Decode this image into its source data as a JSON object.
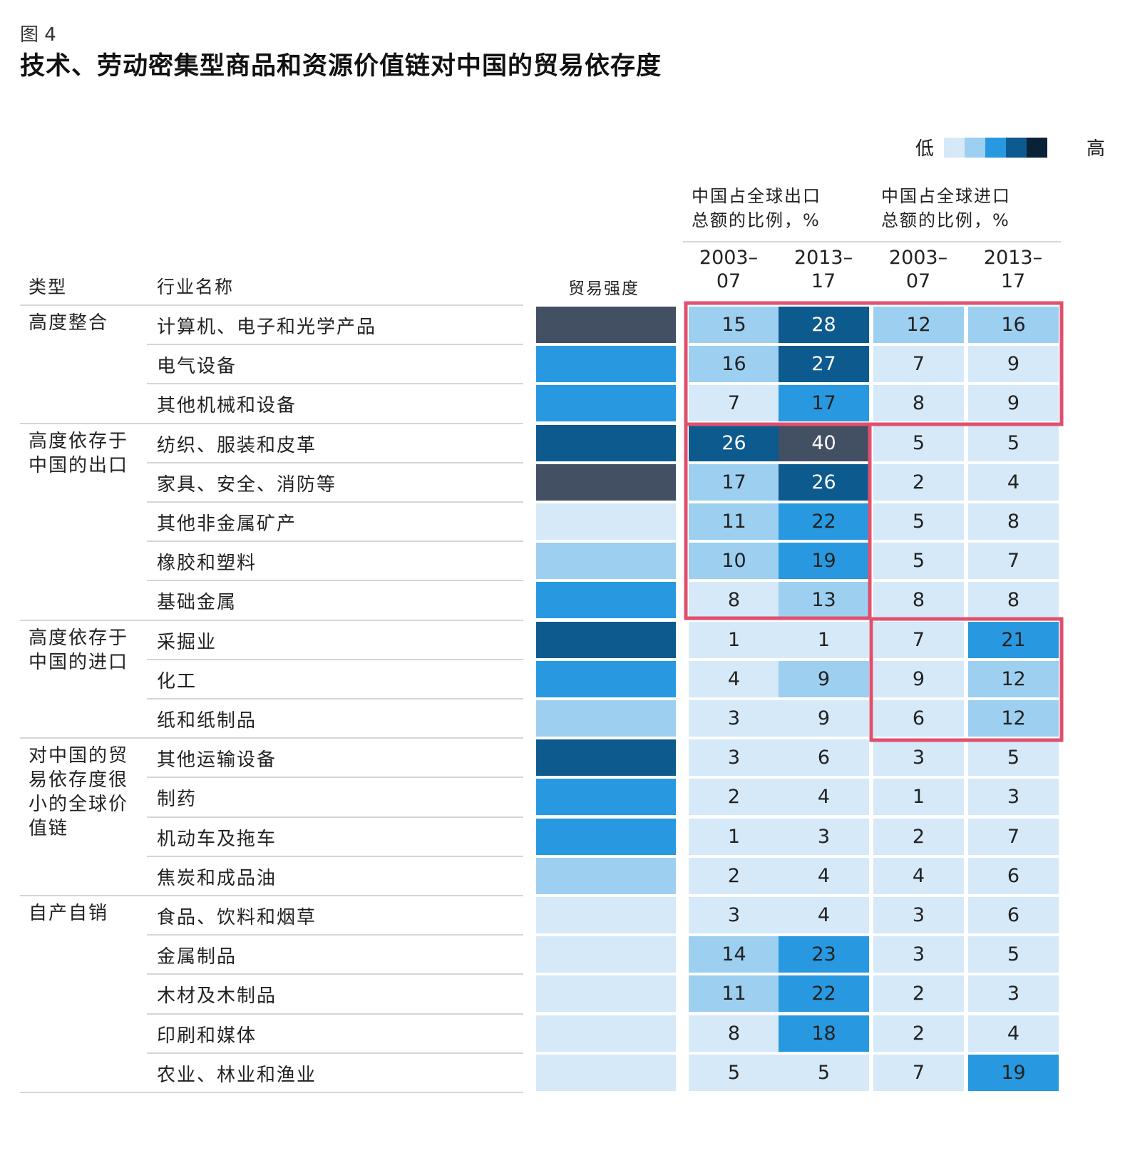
{
  "figure_label": "图 4",
  "title": "技术、劳动密集型商品和资源价值链对中国的贸易依存度",
  "legend": {
    "low": "低",
    "high": "高",
    "colors": [
      "#d6e9f8",
      "#9dcff0",
      "#2899e0",
      "#0d5a8e",
      "#0a2238"
    ]
  },
  "headers": {
    "type": "类型",
    "industry": "行业名称",
    "intensity": "贸易强度",
    "export_group_line1": "中国占全球出口",
    "export_group_line2": "总额的比例，%",
    "import_group_line1": "中国占全球进口",
    "import_group_line2": "总额的比例，%",
    "years": [
      {
        "line1": "2003–",
        "line2": "07"
      },
      {
        "line1": "2013–",
        "line2": "17"
      },
      {
        "line1": "2003–",
        "line2": "07"
      },
      {
        "line1": "2013–",
        "line2": "17"
      }
    ]
  },
  "chart_data": {
    "type": "table",
    "columns": [
      "2003–07 出口",
      "2013–17 出口",
      "2003–07 进口",
      "2013–17 进口"
    ],
    "groups": [
      {
        "label": "高度整合",
        "label_lines": [
          "高度整合"
        ],
        "rows": [
          {
            "industry": "计算机、电子和光学产品",
            "intensity": 5,
            "values": [
              15,
              28,
              12,
              16
            ],
            "shade": [
              2,
              4,
              2,
              2
            ]
          },
          {
            "industry": "电气设备",
            "intensity": 3,
            "values": [
              16,
              27,
              7,
              9
            ],
            "shade": [
              2,
              4,
              1,
              1
            ]
          },
          {
            "industry": "其他机械和设备",
            "intensity": 3,
            "values": [
              7,
              17,
              8,
              9
            ],
            "shade": [
              1,
              3,
              1,
              1
            ]
          }
        ]
      },
      {
        "label": "高度依存于中国的出口",
        "label_lines": [
          "高度依存于",
          "中国的出口"
        ],
        "rows": [
          {
            "industry": "纺织、服装和皮革",
            "intensity": 4,
            "values": [
              26,
              40,
              5,
              5
            ],
            "shade": [
              4,
              5,
              1,
              1
            ]
          },
          {
            "industry": "家具、安全、消防等",
            "intensity": 5,
            "values": [
              17,
              26,
              2,
              4
            ],
            "shade": [
              2,
              4,
              1,
              1
            ]
          },
          {
            "industry": "其他非金属矿产",
            "intensity": 1,
            "values": [
              11,
              22,
              5,
              8
            ],
            "shade": [
              2,
              3,
              1,
              1
            ]
          },
          {
            "industry": "橡胶和塑料",
            "intensity": 2,
            "values": [
              10,
              19,
              5,
              7
            ],
            "shade": [
              2,
              3,
              1,
              1
            ]
          },
          {
            "industry": "基础金属",
            "intensity": 3,
            "values": [
              8,
              13,
              8,
              8
            ],
            "shade": [
              1,
              2,
              1,
              1
            ]
          }
        ]
      },
      {
        "label": "高度依存于中国的进口",
        "label_lines": [
          "高度依存于",
          "中国的进口"
        ],
        "rows": [
          {
            "industry": "采掘业",
            "intensity": 4,
            "values": [
              1,
              1,
              7,
              21
            ],
            "shade": [
              1,
              1,
              1,
              3
            ]
          },
          {
            "industry": "化工",
            "intensity": 3,
            "values": [
              4,
              9,
              9,
              12
            ],
            "shade": [
              1,
              2,
              1,
              2
            ]
          },
          {
            "industry": "纸和纸制品",
            "intensity": 2,
            "values": [
              3,
              9,
              6,
              12
            ],
            "shade": [
              1,
              1,
              1,
              2
            ]
          }
        ]
      },
      {
        "label": "对中国的贸易依存度很小的全球价值链",
        "label_lines": [
          "对中国的贸",
          "易依存度很",
          "小的全球价",
          "值链"
        ],
        "rows": [
          {
            "industry": "其他运输设备",
            "intensity": 4,
            "values": [
              3,
              6,
              3,
              5
            ],
            "shade": [
              1,
              1,
              1,
              1
            ]
          },
          {
            "industry": "制药",
            "intensity": 3,
            "values": [
              2,
              4,
              1,
              3
            ],
            "shade": [
              1,
              1,
              1,
              1
            ]
          },
          {
            "industry": "机动车及拖车",
            "intensity": 3,
            "values": [
              1,
              3,
              2,
              7
            ],
            "shade": [
              1,
              1,
              1,
              1
            ]
          },
          {
            "industry": "焦炭和成品油",
            "intensity": 2,
            "values": [
              2,
              4,
              4,
              6
            ],
            "shade": [
              1,
              1,
              1,
              1
            ]
          }
        ]
      },
      {
        "label": "自产自销",
        "label_lines": [
          "自产自销"
        ],
        "rows": [
          {
            "industry": "食品、饮料和烟草",
            "intensity": 1,
            "values": [
              3,
              4,
              3,
              6
            ],
            "shade": [
              1,
              1,
              1,
              1
            ]
          },
          {
            "industry": "金属制品",
            "intensity": 1,
            "values": [
              14,
              23,
              3,
              5
            ],
            "shade": [
              2,
              3,
              1,
              1
            ]
          },
          {
            "industry": "木材及木制品",
            "intensity": 1,
            "values": [
              11,
              22,
              2,
              3
            ],
            "shade": [
              2,
              3,
              1,
              1
            ]
          },
          {
            "industry": "印刷和媒体",
            "intensity": 1,
            "values": [
              8,
              18,
              2,
              4
            ],
            "shade": [
              1,
              3,
              1,
              1
            ]
          },
          {
            "industry": "农业、林业和渔业",
            "intensity": 1,
            "values": [
              5,
              5,
              7,
              19
            ],
            "shade": [
              1,
              1,
              1,
              3
            ]
          }
        ]
      }
    ],
    "highlight_color": "#e0506e",
    "highlights": [
      {
        "rows": "计算机、电子和光学产品 – 其他机械和设备",
        "columns": "all four"
      },
      {
        "rows": "纺织、服装和皮革 – 基础金属",
        "columns": "export 2003–07, 2013–17"
      },
      {
        "rows": "采掘业 – 纸和纸制品",
        "columns": "import 2003–07, 2013–17"
      }
    ]
  }
}
